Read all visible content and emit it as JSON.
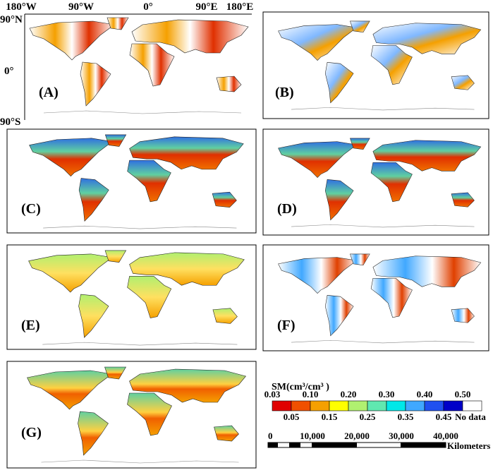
{
  "axes": {
    "x_labels": [
      "180°W",
      "90°W",
      "0°",
      "90°E",
      "180°E"
    ],
    "y_labels": [
      "90°N",
      "0°",
      "90°S"
    ]
  },
  "panels": [
    "(A)",
    "(B)",
    "(C)",
    "(D)",
    "(E)",
    "(F)",
    "(G)"
  ],
  "legend": {
    "title": "SM(cm³/cm³ )",
    "top_labels": [
      "0.03",
      "0.10",
      "0.20",
      "0.30",
      "0.40",
      "0.50"
    ],
    "bottom_labels": [
      "0.05",
      "0.15",
      "0.25",
      "0.35",
      "0.45",
      "No data"
    ],
    "colors": [
      "#e00000",
      "#f05000",
      "#f5a000",
      "#ffff00",
      "#b0f070",
      "#60e8b0",
      "#00e8e8",
      "#40a8ff",
      "#2050f0",
      "#0000c8",
      "#ffffff"
    ]
  },
  "scale_bar": {
    "labels": [
      "0",
      "10,000",
      "20,000",
      "30,000",
      "40,000"
    ],
    "unit": "Kilometers"
  }
}
